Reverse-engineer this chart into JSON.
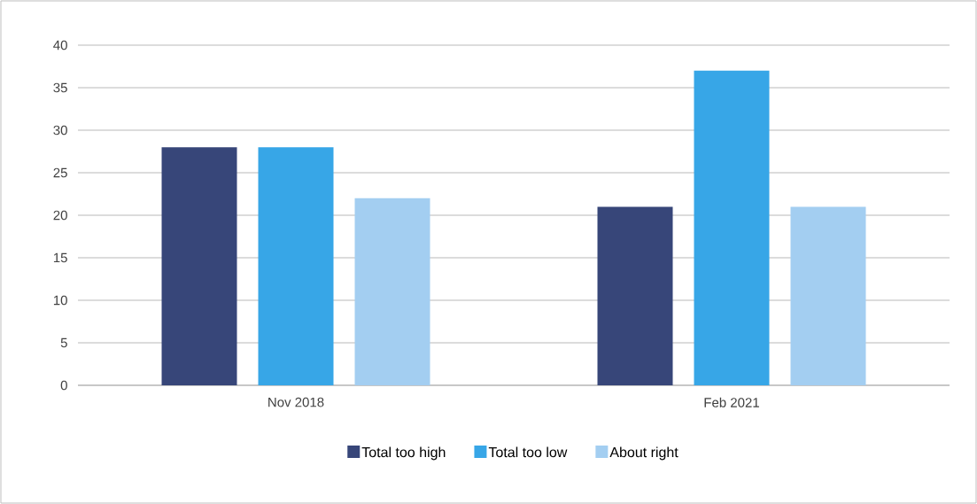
{
  "chart_data": {
    "type": "bar",
    "categories": [
      "Nov 2018",
      "Feb 2021"
    ],
    "series": [
      {
        "name": "Total too high",
        "color": "#374679",
        "values": [
          28,
          21
        ]
      },
      {
        "name": "Total too low",
        "color": "#37a6e7",
        "values": [
          28,
          37
        ]
      },
      {
        "name": "About right",
        "color": "#a3cef1",
        "values": [
          22,
          21
        ]
      }
    ],
    "ylim": [
      0,
      40
    ],
    "yticks": [
      0,
      5,
      10,
      15,
      20,
      25,
      30,
      35,
      40
    ],
    "grid": "y",
    "legend": "bottom"
  }
}
